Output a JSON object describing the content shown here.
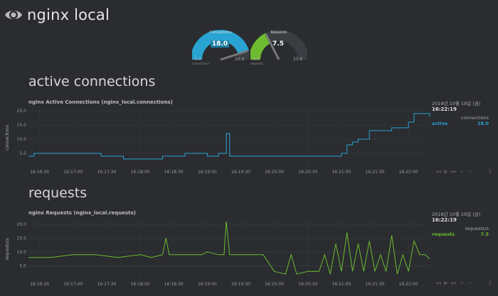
{
  "header": {
    "title": "nginx local"
  },
  "gauges": [
    {
      "label": "Connections",
      "value": "18.0",
      "min": "0.0",
      "max": "20.0",
      "unit": "connections",
      "fraction": 0.9,
      "color": "#29a3d1"
    },
    {
      "label": "Requests",
      "value": "7.5",
      "min": "0.0",
      "max": "21.6",
      "unit": "requests",
      "fraction": 0.35,
      "color": "#6dbb2e"
    }
  ],
  "sections": [
    {
      "title": "active connections",
      "chart_title": "nginx Active Connections (nginx_local.connections)",
      "ylabel": "connections",
      "legend": {
        "date": "2018년 10월 19일 (금)",
        "time": "16:22:19",
        "units": "connections",
        "series": "active",
        "value": "18.0"
      }
    },
    {
      "title": "requests",
      "chart_title": "nginx Requests (nginx_local.requests)",
      "ylabel": "requests/s",
      "legend": {
        "date": "2018년 10월 19일 (금)",
        "time": "16:22:19",
        "units": "requests/s",
        "series": "requests",
        "value": "7.5"
      }
    }
  ],
  "chart_data": [
    {
      "type": "line",
      "title": "nginx Active Connections (nginx_local.connections)",
      "ylabel": "connections",
      "ylim": [
        0,
        21
      ],
      "yticks": [
        "5.0",
        "10.0",
        "15.0",
        "20.0"
      ],
      "xticks": [
        "16:16:30",
        "16:17:00",
        "16:17:30",
        "16:18:00",
        "16:18:30",
        "16:19:00",
        "16:19:30",
        "16:20:00",
        "16:20:30",
        "16:21:00",
        "16:21:30",
        "16:22:00"
      ],
      "xrange": [
        "16:16:20",
        "16:22:19"
      ],
      "grid": true,
      "color": "#29a3d1",
      "series": [
        {
          "name": "active",
          "x": [
            "16:16:20",
            "16:16:25",
            "16:17:00",
            "16:17:20",
            "16:17:25",
            "16:17:40",
            "16:17:45",
            "16:18:00",
            "16:18:10",
            "16:18:20",
            "16:18:30",
            "16:18:40",
            "16:18:50",
            "16:19:00",
            "16:19:10",
            "16:19:15",
            "16:19:17",
            "16:19:20",
            "16:19:30",
            "16:19:40",
            "16:19:50",
            "16:20:00",
            "16:20:10",
            "16:20:20",
            "16:20:30",
            "16:20:40",
            "16:20:50",
            "16:21:00",
            "16:21:05",
            "16:21:10",
            "16:21:15",
            "16:21:20",
            "16:21:25",
            "16:21:30",
            "16:21:35",
            "16:21:45",
            "16:21:55",
            "16:22:00",
            "16:22:05",
            "16:22:10",
            "16:22:19"
          ],
          "values": [
            4,
            5,
            5,
            5,
            4,
            4,
            3,
            3,
            3,
            4,
            4,
            5,
            5,
            4,
            5,
            5,
            12,
            4,
            4,
            4,
            4,
            4,
            4,
            4,
            4,
            4,
            4,
            5,
            8,
            9,
            10,
            10,
            13,
            13,
            13,
            14,
            14,
            16,
            19,
            19,
            18
          ]
        }
      ]
    },
    {
      "type": "line",
      "title": "nginx Requests (nginx_local.requests)",
      "ylabel": "requests/s",
      "ylim": [
        0,
        22
      ],
      "yticks": [
        "5.0",
        "10.0",
        "15.0",
        "20.0"
      ],
      "xticks": [
        "16:16:30",
        "16:17:00",
        "16:17:30",
        "16:18:00",
        "16:18:30",
        "16:19:00",
        "16:19:30",
        "16:20:00",
        "16:20:30",
        "16:21:00",
        "16:21:30",
        "16:22:00"
      ],
      "xrange": [
        "16:16:20",
        "16:22:19"
      ],
      "grid": true,
      "color": "#6dbb2e",
      "series": [
        {
          "name": "requests",
          "x": [
            "16:16:20",
            "16:16:40",
            "16:17:00",
            "16:17:20",
            "16:17:40",
            "16:18:00",
            "16:18:10",
            "16:18:20",
            "16:18:23",
            "16:18:26",
            "16:18:40",
            "16:18:55",
            "16:19:00",
            "16:19:10",
            "16:19:15",
            "16:19:17",
            "16:19:20",
            "16:19:30",
            "16:19:40",
            "16:19:50",
            "16:20:00",
            "16:20:10",
            "16:20:15",
            "16:20:20",
            "16:20:30",
            "16:20:40",
            "16:20:45",
            "16:20:50",
            "16:20:55",
            "16:21:00",
            "16:21:05",
            "16:21:10",
            "16:21:15",
            "16:21:20",
            "16:21:25",
            "16:21:30",
            "16:21:35",
            "16:21:40",
            "16:21:45",
            "16:21:50",
            "16:21:55",
            "16:22:00",
            "16:22:05",
            "16:22:10",
            "16:22:15",
            "16:22:19"
          ],
          "values": [
            8,
            8,
            9,
            9,
            8,
            9,
            8,
            9,
            15,
            9,
            9,
            9,
            10,
            9,
            9,
            21,
            9,
            9,
            9,
            9,
            3,
            2,
            9,
            2,
            3,
            3,
            9,
            2,
            13,
            3,
            17,
            3,
            13,
            3,
            14,
            3,
            9,
            3,
            16,
            2,
            9,
            3,
            14,
            9,
            9,
            7.5
          ]
        }
      ]
    }
  ]
}
